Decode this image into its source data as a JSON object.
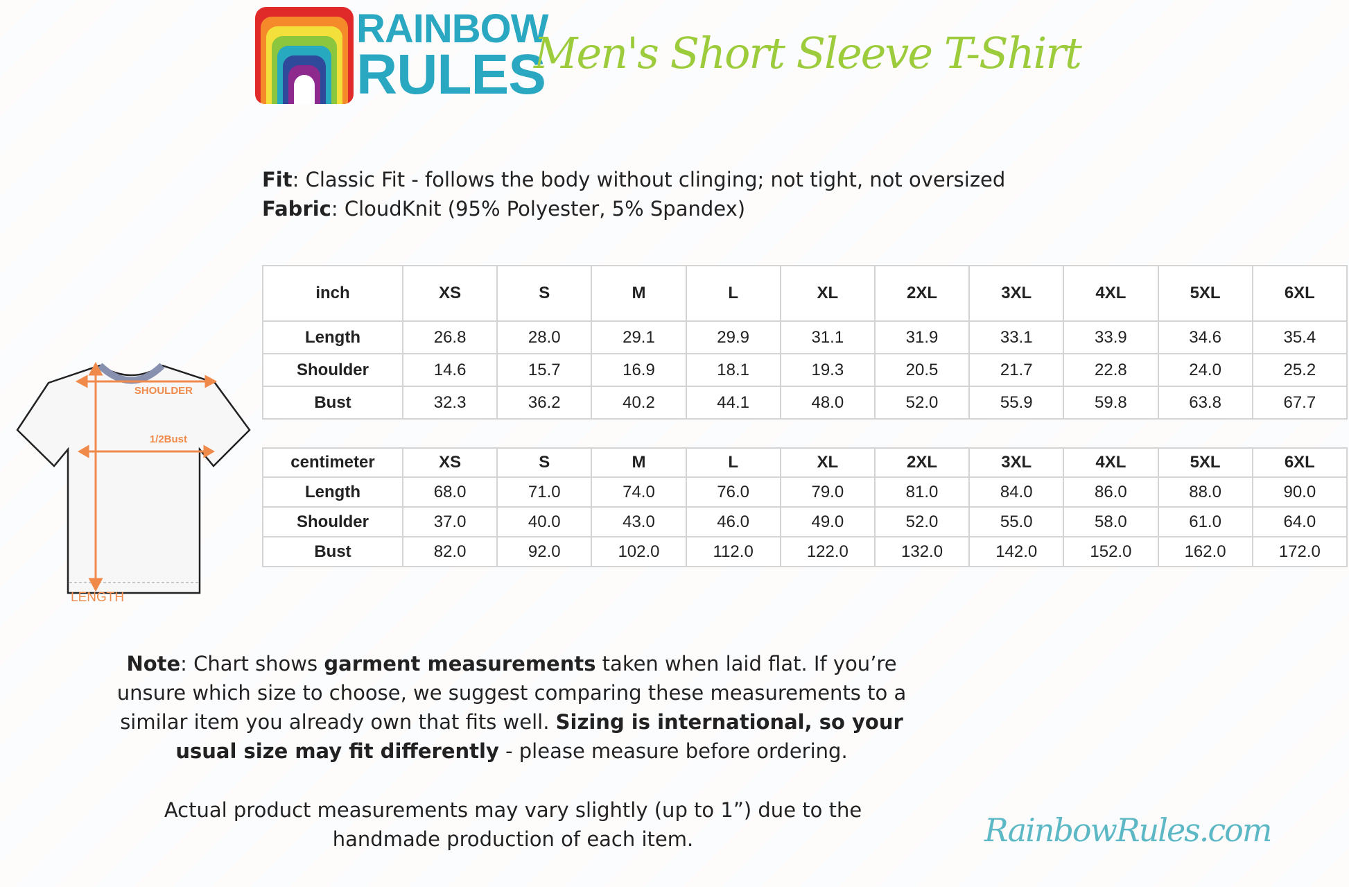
{
  "brand": {
    "logo_line1": "RAINBOW",
    "logo_line2": "RULES",
    "website": "RainbowRules.com"
  },
  "title": "Men's Short Sleeve T-Shirt",
  "specs": {
    "fit_label": "Fit",
    "fit_value": ": Classic Fit - follows the body without clinging; not tight, not oversized",
    "fabric_label": "Fabric",
    "fabric_value": ": CloudKnit (95% Polyester, 5% Spandex)"
  },
  "diagram": {
    "shoulder": "SHOULDER",
    "bust": "1/2Bust",
    "length": "LENGTH"
  },
  "inch_table": {
    "unit": "inch",
    "sizes": [
      "XS",
      "S",
      "M",
      "L",
      "XL",
      "2XL",
      "3XL",
      "4XL",
      "5XL",
      "6XL"
    ],
    "rows": [
      {
        "label": "Length",
        "values": [
          "26.8",
          "28.0",
          "29.1",
          "29.9",
          "31.1",
          "31.9",
          "33.1",
          "33.9",
          "34.6",
          "35.4"
        ]
      },
      {
        "label": "Shoulder",
        "values": [
          "14.6",
          "15.7",
          "16.9",
          "18.1",
          "19.3",
          "20.5",
          "21.7",
          "22.8",
          "24.0",
          "25.2"
        ]
      },
      {
        "label": "Bust",
        "values": [
          "32.3",
          "36.2",
          "40.2",
          "44.1",
          "48.0",
          "52.0",
          "55.9",
          "59.8",
          "63.8",
          "67.7"
        ]
      }
    ]
  },
  "cm_table": {
    "unit": "centimeter",
    "sizes": [
      "XS",
      "S",
      "M",
      "L",
      "XL",
      "2XL",
      "3XL",
      "4XL",
      "5XL",
      "6XL"
    ],
    "rows": [
      {
        "label": "Length",
        "values": [
          "68.0",
          "71.0",
          "74.0",
          "76.0",
          "79.0",
          "81.0",
          "84.0",
          "86.0",
          "88.0",
          "90.0"
        ]
      },
      {
        "label": "Shoulder",
        "values": [
          "37.0",
          "40.0",
          "43.0",
          "46.0",
          "49.0",
          "52.0",
          "55.0",
          "58.0",
          "61.0",
          "64.0"
        ]
      },
      {
        "label": "Bust",
        "values": [
          "82.0",
          "92.0",
          "102.0",
          "112.0",
          "122.0",
          "132.0",
          "142.0",
          "152.0",
          "162.0",
          "172.0"
        ]
      }
    ]
  },
  "note": {
    "label": "Note",
    "t1": ": Chart shows ",
    "b1": "garment measurements",
    "t2": " taken when laid flat. If you’re unsure which size to choose, we suggest comparing these measurements to a similar item you already own that fits well. ",
    "b2": "Sizing is international, so your usual size may fit differently",
    "t3": " - please measure before ordering."
  },
  "disclaimer": "Actual product measurements may vary slightly (up to 1”) due to the handmade production of each item.",
  "colors": {
    "title_green": "#9ccb3b",
    "logo_teal": "#2aa8c1",
    "measure_orange": "#f08a4b"
  }
}
